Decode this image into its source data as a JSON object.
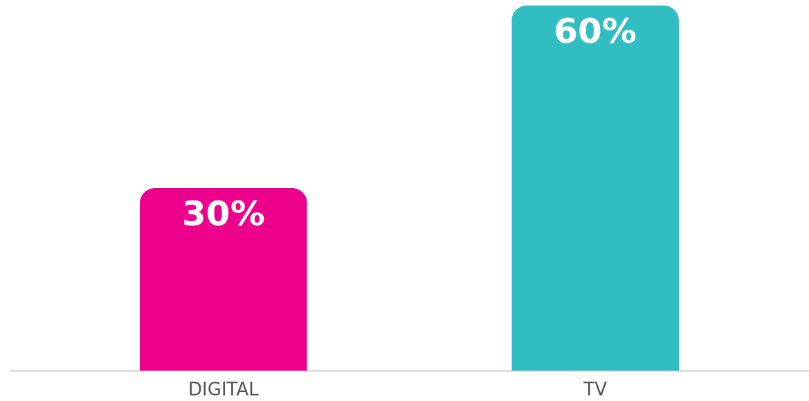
{
  "chart_data": {
    "type": "bar",
    "categories": [
      "DIGITAL",
      "TV"
    ],
    "values": [
      30,
      60
    ],
    "colors": [
      "#ec008c",
      "#31bec2"
    ],
    "value_labels": [
      "30%",
      "60%"
    ],
    "tick_labels": "x",
    "grid": false
  }
}
